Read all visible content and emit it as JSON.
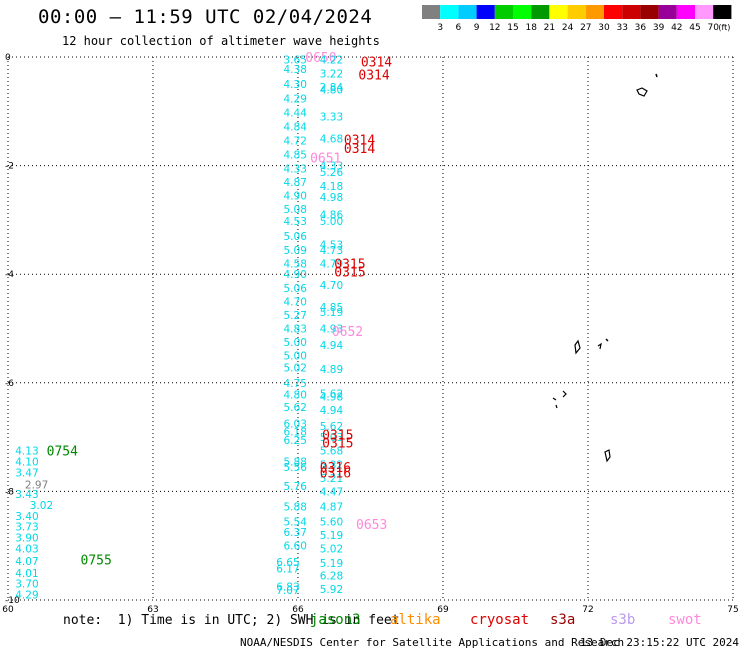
{
  "title": "00:00 – 11:59 UTC 02/04/2024",
  "subtitle": "12 hour collection of altimeter wave heights",
  "colorbar": {
    "colors": [
      "#808080",
      "#00ffff",
      "#00ccff",
      "#0000ff",
      "#00cc00",
      "#00ff00",
      "#009900",
      "#ffff00",
      "#ffcc00",
      "#ff9900",
      "#ff0000",
      "#cc0000",
      "#990000",
      "#990099",
      "#ff00ff",
      "#ff99ff",
      "#000000"
    ],
    "labels": [
      "3",
      "6",
      "9",
      "12",
      "15",
      "18",
      "21",
      "24",
      "27",
      "30",
      "33",
      "36",
      "39",
      "42",
      "45",
      "70"
    ],
    "unit": "(ft)"
  },
  "axes": {
    "x_ticks": [
      "60",
      "63",
      "66",
      "69",
      "72",
      "75"
    ],
    "y_ticks": [
      "0",
      "-2",
      "-4",
      "-6",
      "-8",
      "-10"
    ]
  },
  "track_colors": {
    "cyan": "#00d8e8",
    "jason": "#008800",
    "cryosat": "#dd0000",
    "swot": "#ff88dd",
    "grey": "#808080"
  },
  "tracks": [
    {
      "label": "0650",
      "color": "swot",
      "lon": 66.15,
      "lat": 0.0,
      "values": []
    },
    {
      "label": "",
      "color": "cyan",
      "lon": 65.7,
      "lat": -0.05,
      "values": [
        {
          "v": "3.65",
          "lat": -0.05
        },
        {
          "v": "4.38",
          "lat": -0.22
        },
        {
          "v": "4.30",
          "lat": -0.5
        },
        {
          "v": "4.29",
          "lat": -0.76
        },
        {
          "v": "4.44",
          "lat": -1.02
        },
        {
          "v": "4.84",
          "lat": -1.28
        },
        {
          "v": "4.72",
          "lat": -1.54
        },
        {
          "v": "4.85",
          "lat": -1.8
        },
        {
          "v": "4.33",
          "lat": -2.05
        },
        {
          "v": "4.87",
          "lat": -2.3
        },
        {
          "v": "4.90",
          "lat": -2.55
        },
        {
          "v": "5.08",
          "lat": -2.8
        },
        {
          "v": "4.53",
          "lat": -3.02
        },
        {
          "v": "5.06",
          "lat": -3.3
        },
        {
          "v": "5.09",
          "lat": -3.55
        },
        {
          "v": "4.58",
          "lat": -3.8
        },
        {
          "v": "4.90",
          "lat": -4.0
        },
        {
          "v": "5.06",
          "lat": -4.25
        },
        {
          "v": "4.70",
          "lat": -4.5
        },
        {
          "v": "5.27",
          "lat": -4.75
        },
        {
          "v": "4.83",
          "lat": -5.0
        },
        {
          "v": "5.00",
          "lat": -5.25
        },
        {
          "v": "5.00",
          "lat": -5.5
        },
        {
          "v": "5.02",
          "lat": -5.72
        },
        {
          "v": "4.75",
          "lat": -6.0
        },
        {
          "v": "4.80",
          "lat": -6.22
        },
        {
          "v": "5.62",
          "lat": -6.45
        },
        {
          "v": "6.03",
          "lat": -6.75
        },
        {
          "v": "6.18",
          "lat": -6.9
        },
        {
          "v": "6.25",
          "lat": -7.05
        },
        {
          "v": "5.88",
          "lat": -7.45
        },
        {
          "v": "5.56",
          "lat": -7.55
        },
        {
          "v": "5.76",
          "lat": -7.9
        },
        {
          "v": "5.88",
          "lat": -8.28
        },
        {
          "v": "5.54",
          "lat": -8.55
        },
        {
          "v": "6.37",
          "lat": -8.75
        },
        {
          "v": "6.60",
          "lat": -9.0
        }
      ]
    },
    {
      "label": "",
      "color": "cyan",
      "lon": 66.45,
      "lat": -0.05,
      "values": [
        {
          "v": "4.22",
          "lat": -0.05
        },
        {
          "v": "3.22",
          "lat": -0.3
        },
        {
          "v": "2.84",
          "lat": -0.55
        },
        {
          "v": "4.80",
          "lat": -0.6
        },
        {
          "v": "3.33",
          "lat": -1.1
        },
        {
          "v": "4.68",
          "lat": -1.5
        },
        {
          "v": "4.33",
          "lat": -2.0
        },
        {
          "v": "5.26",
          "lat": -2.12
        },
        {
          "v": "4.18",
          "lat": -2.38
        },
        {
          "v": "4.98",
          "lat": -2.58
        },
        {
          "v": "4.86",
          "lat": -2.9
        },
        {
          "v": "5.00",
          "lat": -3.02
        },
        {
          "v": "4.53",
          "lat": -3.45
        },
        {
          "v": "4.73",
          "lat": -3.55
        },
        {
          "v": "4.79",
          "lat": -3.8
        },
        {
          "v": "4.70",
          "lat": -4.2
        },
        {
          "v": "4.85",
          "lat": -4.6
        },
        {
          "v": "5.19",
          "lat": -4.7
        },
        {
          "v": "4.93",
          "lat": -5.0
        },
        {
          "v": "4.94",
          "lat": -5.3
        },
        {
          "v": "4.89",
          "lat": -5.75
        },
        {
          "v": "5.62",
          "lat": -6.2
        },
        {
          "v": "4.98",
          "lat": -6.25
        },
        {
          "v": "4.94",
          "lat": -6.5
        },
        {
          "v": "5.62",
          "lat": -6.8
        },
        {
          "v": "5.03",
          "lat": -7.0
        },
        {
          "v": "5.68",
          "lat": -7.25
        },
        {
          "v": "5.32",
          "lat": -7.5
        },
        {
          "v": "5.21",
          "lat": -7.75
        },
        {
          "v": "4.47",
          "lat": -8.0
        },
        {
          "v": "4.87",
          "lat": -8.28
        },
        {
          "v": "5.60",
          "lat": -8.55
        },
        {
          "v": "5.19",
          "lat": -8.8
        },
        {
          "v": "5.02",
          "lat": -9.05
        },
        {
          "v": "5.19",
          "lat": -9.32
        },
        {
          "v": "6.28",
          "lat": -9.55
        },
        {
          "v": "5.92",
          "lat": -9.8
        }
      ]
    },
    {
      "label": "",
      "color": "cyan",
      "lon": 65.55,
      "lat": -9.3,
      "values": [
        {
          "v": "6.65",
          "lat": -9.3
        },
        {
          "v": "6.17",
          "lat": -9.42
        },
        {
          "v": "6.83",
          "lat": -9.75
        },
        {
          "v": "7.07",
          "lat": -9.82
        }
      ]
    },
    {
      "label": "0314",
      "color": "cryosat",
      "lon": 67.3,
      "lat": -0.08,
      "values": []
    },
    {
      "label": "0314",
      "color": "cryosat",
      "lon": 67.25,
      "lat": -0.32,
      "values": []
    },
    {
      "label": "0314",
      "color": "cryosat",
      "lon": 66.95,
      "lat": -1.52,
      "values": []
    },
    {
      "label": "0314",
      "color": "cryosat",
      "lon": 66.95,
      "lat": -1.68,
      "values": []
    },
    {
      "label": "0651",
      "color": "swot",
      "lon": 66.25,
      "lat": -1.85,
      "values": []
    },
    {
      "label": "0315",
      "color": "cryosat",
      "lon": 66.75,
      "lat": -3.8,
      "values": []
    },
    {
      "label": "0315",
      "color": "cryosat",
      "lon": 66.75,
      "lat": -3.95,
      "values": []
    },
    {
      "label": "0652",
      "color": "swot",
      "lon": 66.7,
      "lat": -5.05,
      "values": []
    },
    {
      "label": "0315",
      "color": "cryosat",
      "lon": 66.5,
      "lat": -6.95,
      "values": []
    },
    {
      "label": "0315",
      "color": "cryosat",
      "lon": 66.5,
      "lat": -7.1,
      "values": []
    },
    {
      "label": "0316",
      "color": "cryosat",
      "lon": 66.45,
      "lat": -7.55,
      "values": []
    },
    {
      "label": "0316",
      "color": "cryosat",
      "lon": 66.45,
      "lat": -7.65,
      "values": []
    },
    {
      "label": "0653",
      "color": "swot",
      "lon": 67.2,
      "lat": -8.6,
      "values": []
    },
    {
      "label": "0754",
      "color": "jason",
      "lon": 60.8,
      "lat": -7.25,
      "values": []
    },
    {
      "label": "0755",
      "color": "jason",
      "lon": 61.5,
      "lat": -9.25,
      "values": []
    },
    {
      "label": "",
      "color": "cyan",
      "lon": 60.15,
      "lat": -7.25,
      "values": [
        {
          "v": "4.13",
          "lat": -7.25
        },
        {
          "v": "4.10",
          "lat": -7.45
        },
        {
          "v": "3.47",
          "lat": -7.65
        },
        {
          "v": "3.43",
          "lat": -8.05
        },
        {
          "v": "3.40",
          "lat": -8.45
        },
        {
          "v": "3.73",
          "lat": -8.65
        },
        {
          "v": "3.90",
          "lat": -8.85
        },
        {
          "v": "4.03",
          "lat": -9.05
        },
        {
          "v": "4.07",
          "lat": -9.28
        },
        {
          "v": "4.01",
          "lat": -9.5
        },
        {
          "v": "3.70",
          "lat": -9.7
        },
        {
          "v": "4.29",
          "lat": -9.9
        }
      ]
    },
    {
      "label": "",
      "color": "grey",
      "lon": 60.35,
      "lat": -7.87,
      "values": [
        {
          "v": "2.97",
          "lat": -7.87
        }
      ]
    },
    {
      "label": "",
      "color": "cyan",
      "lon": 60.45,
      "lat": -8.25,
      "values": [
        {
          "v": "3.02",
          "lat": -8.25
        }
      ]
    }
  ],
  "note": "note:  1) Time is in UTC; 2) SWH is in feet",
  "satellites": [
    {
      "name": "jason3",
      "color": "#008800"
    },
    {
      "name": "altika",
      "color": "#ff8c00"
    },
    {
      "name": "cryosat",
      "color": "#dd0000"
    },
    {
      "name": "s3a",
      "color": "#990000"
    },
    {
      "name": "s3b",
      "color": "#bb99ee"
    },
    {
      "name": "swot",
      "color": "#ff88dd"
    }
  ],
  "credit": "NOAA/NESDIS Center for Satellite Applications and Research",
  "stamp": "13 Dec 23:15:22 UTC 2024"
}
